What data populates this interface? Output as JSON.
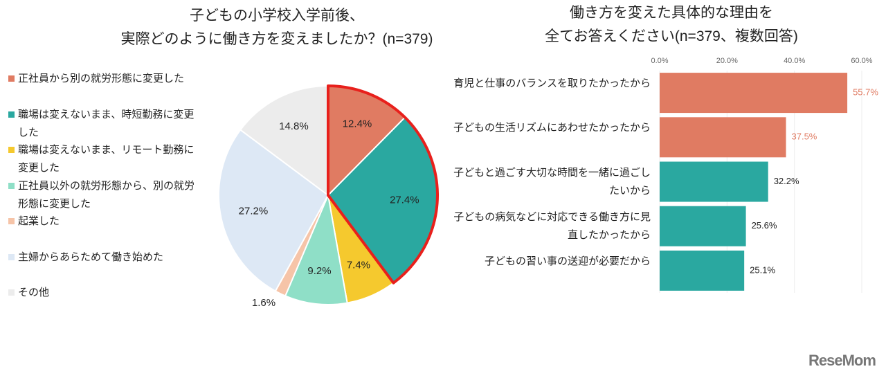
{
  "chart_data": [
    {
      "type": "pie",
      "title": "子どもの小学校入学前後、\n実際どのように働き方を変えましたか？(n=379)",
      "categories": [
        "正社員から別の就労形態に変更した",
        "職場は変えないまま、時短勤務に変更した",
        "職場は変えないまま、リモート勤務に変更した",
        "正社員以外の就労形態から、別の就労形態に変更した",
        "起業した",
        "主婦からあらためて働き始めた",
        "その他"
      ],
      "values": [
        12.4,
        27.4,
        7.4,
        9.2,
        1.6,
        27.2,
        14.8
      ],
      "value_labels": [
        "12.4%",
        "27.4%",
        "7.4%",
        "9.2%",
        "1.6%",
        "27.2%",
        "14.8%"
      ],
      "colors": [
        "#e07b62",
        "#2aa8a0",
        "#f5c92e",
        "#8fdfc7",
        "#f6c4a8",
        "#dde8f5",
        "#ececec"
      ],
      "highlight": [
        0,
        1
      ],
      "highlight_color": "#e8201c",
      "legend": "left"
    },
    {
      "type": "hbar",
      "title": "働き方を変えた具体的な理由を\n全てお答えください(n=379、複数回答)",
      "categories": [
        "育児と仕事のバランスを取りたかったから",
        "子どもの生活リズムにあわせたかったから",
        "子どもと過ごす大切な時間を一緒に過ごしたいから",
        "子どもの病気などに対応できる働き方に見直したかったから",
        "子どもの習い事の送迎が必要だから"
      ],
      "values": [
        55.7,
        37.5,
        32.2,
        25.6,
        25.1
      ],
      "value_labels": [
        "55.7%",
        "37.5%",
        "32.2%",
        "25.6%",
        "25.1%"
      ],
      "colors": [
        "#e07b62",
        "#e07b62",
        "#2aa8a0",
        "#2aa8a0",
        "#2aa8a0"
      ],
      "value_label_colors": [
        "#e07b62",
        "#e07b62",
        "#222222",
        "#222222",
        "#222222"
      ],
      "xlim": [
        0,
        60
      ],
      "xticks": [
        {
          "value": 0,
          "label": "0.0%"
        },
        {
          "value": 20,
          "label": "20.0%"
        },
        {
          "value": 40,
          "label": "40.0%"
        },
        {
          "value": 60,
          "label": "60.0%"
        }
      ],
      "grid": true
    }
  ],
  "watermark": "ReseMom"
}
